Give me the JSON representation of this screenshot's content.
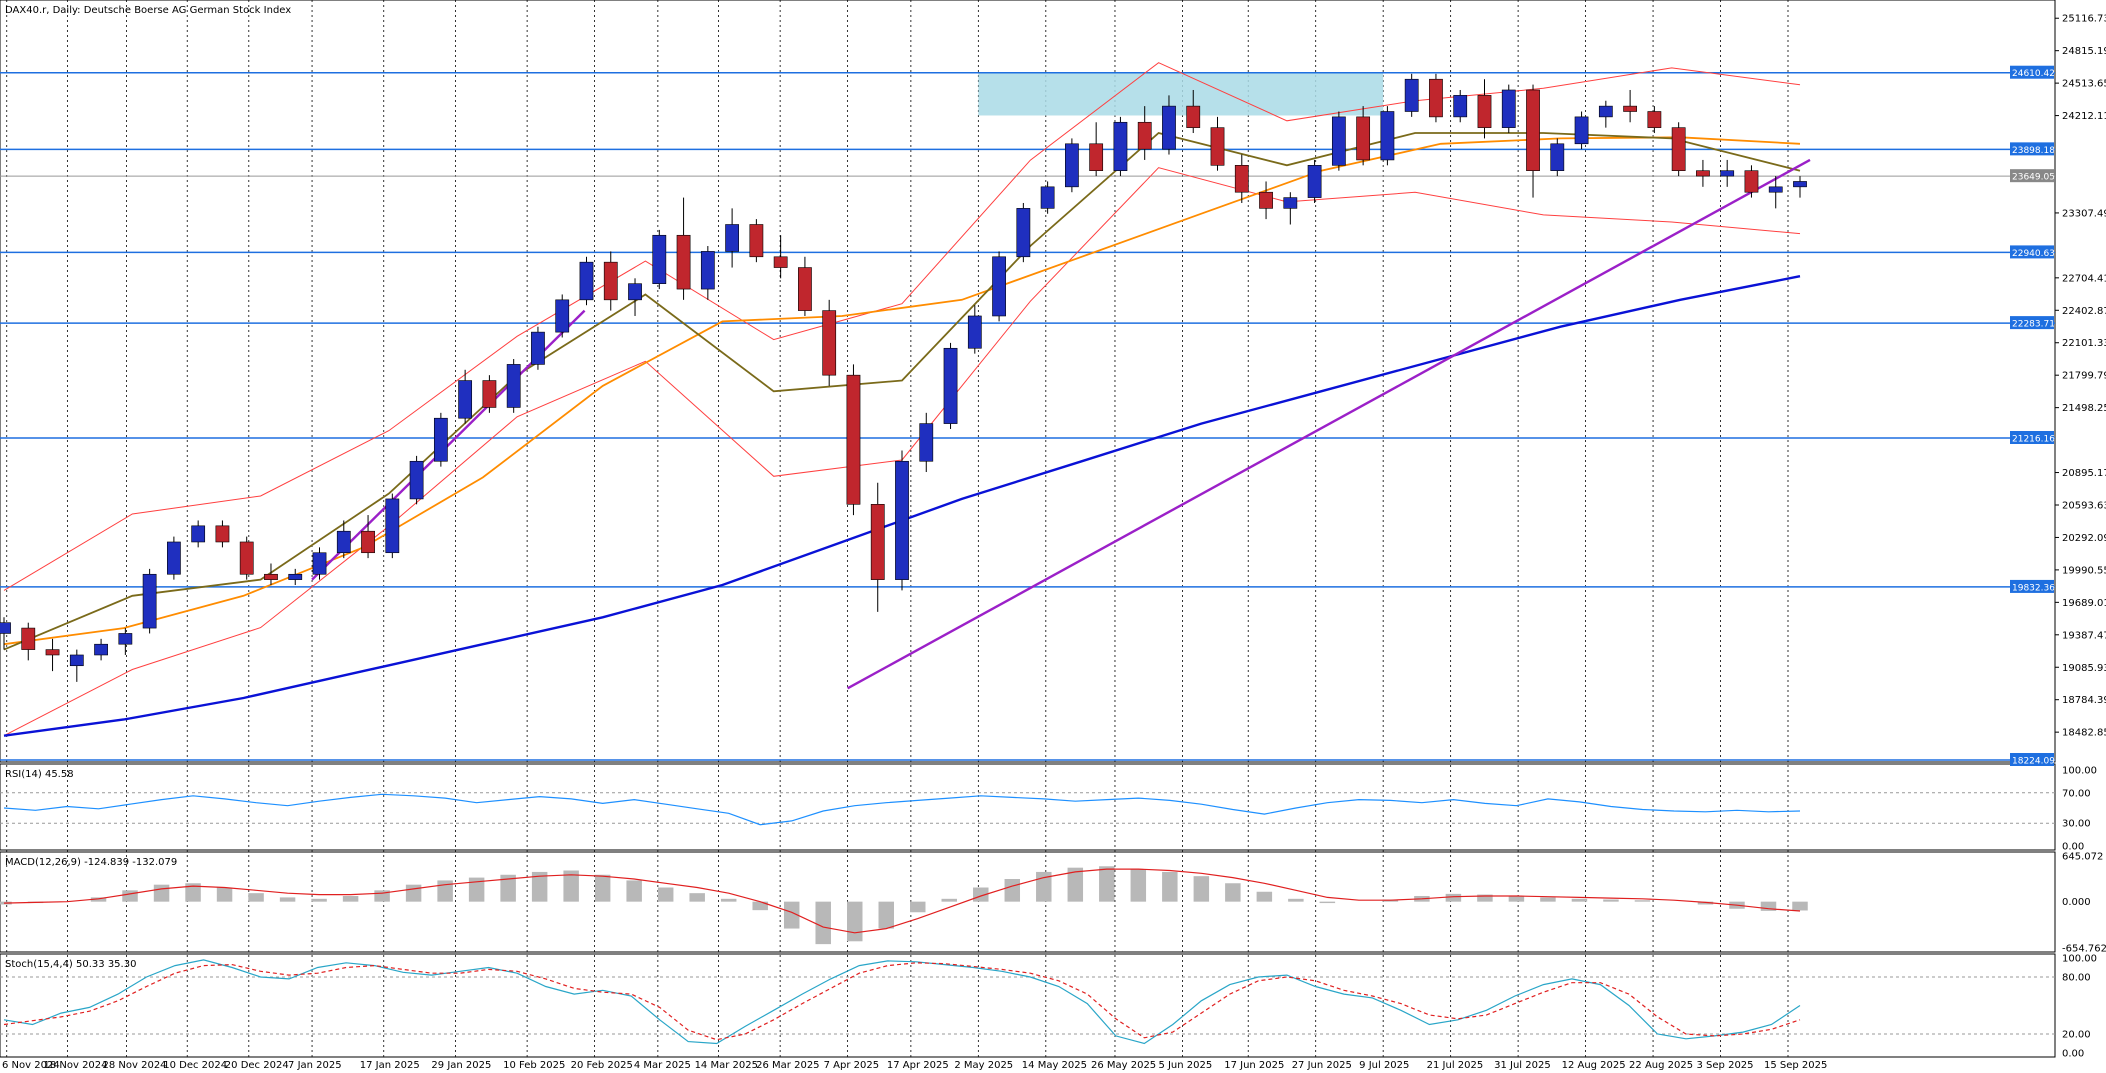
{
  "window": {
    "main_title": "DAX40.r, Daily:  Deutsche Boerse AG German Stock Index"
  },
  "colors": {
    "bull": "#1f2fbf",
    "bear": "#c0262d",
    "sma200": "#0a12d6",
    "ema50": "#ff8c00",
    "ema20": "#7a6a1a",
    "bollinger": "#ff4040",
    "level": "#1e6fe0",
    "trend": "#9b20c8",
    "zone": "#a9dbe6",
    "rsi": "#1e90ff",
    "macd_signal": "#e02020",
    "macd_hist": "#b8b8b8",
    "stoch_main": "#2aa6c8",
    "stoch_signal": "#e02020"
  },
  "chart_data": [
    {
      "type": "candlestick",
      "title": "DAX40.r, Daily:  Deutsche Boerse AG German Stock Index",
      "x_tick_labels": [
        "6 Nov 2024",
        "18 Nov 2024",
        "28 Nov 2024",
        "10 Dec 2024",
        "20 Dec 2024",
        "7 Jan 2025",
        "17 Jan 2025",
        "29 Jan 2025",
        "10 Feb 2025",
        "20 Feb 2025",
        "4 Mar 2025",
        "14 Mar 2025",
        "26 Mar 2025",
        "7 Apr 2025",
        "17 Apr 2025",
        "2 May 2025",
        "14 May 2025",
        "26 May 2025",
        "5 Jun 2025",
        "17 Jun 2025",
        "27 Jun 2025",
        "9 Jul 2025",
        "21 Jul 2025",
        "31 Jul 2025",
        "12 Aug 2025",
        "22 Aug 2025",
        "3 Sep 2025",
        "15 Sep 2025"
      ],
      "y_tick_labels": [
        "25116.73",
        "24815.19",
        "24513.65",
        "24212.11",
        "23307.49",
        "22704.41",
        "22402.87",
        "22101.33",
        "21799.79",
        "21498.25",
        "20895.17",
        "20593.63",
        "20292.09",
        "19990.55",
        "19689.01",
        "19387.47",
        "19085.93",
        "18784.39",
        "18482.85"
      ],
      "ylim": [
        18224.09,
        25267.5
      ],
      "grid": "vertical dotted at each date label",
      "horizontal_levels": [
        "24610.42",
        "23898.18",
        "22940.63",
        "22283.71",
        "21216.16",
        "19832.36",
        "18224.09"
      ],
      "current_price": "23649.05",
      "supply_zone": {
        "low": 24213,
        "high": 24610.42,
        "from": "2 May 2025",
        "to": "9 Jul 2025"
      },
      "trendlines": [
        {
          "name": "",
          "from": [
            "7 Jan 2025",
            19900
          ],
          "to": [
            "17 Feb 2025",
            22400
          ]
        },
        {
          "name": "",
          "from": [
            "7 Apr 2025",
            18890
          ],
          "to": [
            "26 Sep 2025",
            23800
          ]
        }
      ],
      "series": [
        {
          "name": "",
          "kind": "sma200",
          "values": [
            18450,
            18600,
            18800,
            19050,
            19300,
            19550,
            19850,
            20250,
            20650,
            21000,
            21350,
            21650,
            21950,
            22250,
            22500,
            22720
          ]
        },
        {
          "name": "",
          "kind": "ema50",
          "values": [
            19300,
            19450,
            19750,
            20200,
            20850,
            21700,
            22300,
            22350,
            22500,
            22900,
            23300,
            23700,
            23950,
            24000,
            24010,
            23950
          ]
        },
        {
          "name": "",
          "kind": "ema20",
          "values": [
            19250,
            19750,
            19900,
            20700,
            21800,
            22550,
            21650,
            21750,
            23000,
            24050,
            23750,
            24050,
            24050,
            24000,
            23700
          ]
        }
      ],
      "ohlc": [
        [
          19400,
          19550,
          19250,
          19500
        ],
        [
          19450,
          19500,
          19150,
          19250
        ],
        [
          19250,
          19350,
          19050,
          19200
        ],
        [
          19100,
          19250,
          18950,
          19200
        ],
        [
          19200,
          19350,
          19150,
          19300
        ],
        [
          19300,
          19450,
          19200,
          19400
        ],
        [
          19450,
          20000,
          19400,
          19950
        ],
        [
          19950,
          20300,
          19900,
          20250
        ],
        [
          20250,
          20450,
          20200,
          20400
        ],
        [
          20400,
          20450,
          20200,
          20250
        ],
        [
          20250,
          20300,
          19900,
          19950
        ],
        [
          19950,
          20050,
          19850,
          19900
        ],
        [
          19900,
          20000,
          19850,
          19950
        ],
        [
          19950,
          20200,
          19900,
          20150
        ],
        [
          20150,
          20450,
          20100,
          20350
        ],
        [
          20350,
          20500,
          20100,
          20150
        ],
        [
          20150,
          20700,
          20100,
          20650
        ],
        [
          20650,
          21050,
          20600,
          21000
        ],
        [
          21000,
          21450,
          20950,
          21400
        ],
        [
          21400,
          21850,
          21350,
          21750
        ],
        [
          21750,
          21800,
          21450,
          21500
        ],
        [
          21500,
          21950,
          21450,
          21900
        ],
        [
          21900,
          22250,
          21850,
          22200
        ],
        [
          22200,
          22550,
          22150,
          22500
        ],
        [
          22500,
          22900,
          22450,
          22850
        ],
        [
          22850,
          22950,
          22400,
          22500
        ],
        [
          22500,
          22700,
          22350,
          22650
        ],
        [
          22650,
          23150,
          22600,
          23100
        ],
        [
          23100,
          23450,
          22500,
          22600
        ],
        [
          22600,
          23000,
          22500,
          22950
        ],
        [
          22950,
          23350,
          22800,
          23200
        ],
        [
          23200,
          23250,
          22850,
          22900
        ],
        [
          22900,
          23100,
          22700,
          22800
        ],
        [
          22800,
          22900,
          22350,
          22400
        ],
        [
          22400,
          22500,
          21700,
          21800
        ],
        [
          21800,
          21900,
          20500,
          20600
        ],
        [
          20600,
          20800,
          19600,
          19900
        ],
        [
          19900,
          21100,
          19800,
          21000
        ],
        [
          21000,
          21450,
          20900,
          21350
        ],
        [
          21350,
          22100,
          21300,
          22050
        ],
        [
          22050,
          22450,
          22000,
          22350
        ],
        [
          22350,
          22950,
          22300,
          22900
        ],
        [
          22900,
          23400,
          22850,
          23350
        ],
        [
          23350,
          23600,
          23300,
          23550
        ],
        [
          23550,
          24000,
          23500,
          23950
        ],
        [
          23950,
          24150,
          23650,
          23700
        ],
        [
          23700,
          24200,
          23650,
          24150
        ],
        [
          24150,
          24300,
          23800,
          23900
        ],
        [
          23900,
          24400,
          23850,
          24300
        ],
        [
          24300,
          24450,
          24050,
          24100
        ],
        [
          24100,
          24200,
          23700,
          23750
        ],
        [
          23750,
          23850,
          23400,
          23500
        ],
        [
          23500,
          23600,
          23250,
          23350
        ],
        [
          23350,
          23500,
          23200,
          23450
        ],
        [
          23450,
          23800,
          23400,
          23750
        ],
        [
          23750,
          24250,
          23700,
          24200
        ],
        [
          24200,
          24300,
          23750,
          23800
        ],
        [
          23800,
          24300,
          23750,
          24250
        ],
        [
          24250,
          24600,
          24200,
          24550
        ],
        [
          24550,
          24600,
          24150,
          24200
        ],
        [
          24200,
          24450,
          24150,
          24400
        ],
        [
          24400,
          24550,
          24000,
          24100
        ],
        [
          24100,
          24500,
          24050,
          24450
        ],
        [
          24450,
          24500,
          23450,
          23700
        ],
        [
          23700,
          24000,
          23650,
          23950
        ],
        [
          23950,
          24250,
          23900,
          24200
        ],
        [
          24200,
          24350,
          24100,
          24300
        ],
        [
          24300,
          24450,
          24150,
          24250
        ],
        [
          24250,
          24300,
          24050,
          24100
        ],
        [
          24100,
          24150,
          23650,
          23700
        ],
        [
          23700,
          23800,
          23550,
          23650
        ],
        [
          23650,
          23800,
          23550,
          23700
        ],
        [
          23700,
          23750,
          23450,
          23500
        ],
        [
          23500,
          23650,
          23350,
          23550
        ],
        [
          23550,
          23650,
          23450,
          23600
        ]
      ]
    },
    {
      "type": "line",
      "title": "RSI(14) 45.58",
      "y_tick_labels": [
        "100.00",
        "70.00",
        "30.00",
        "0.00"
      ],
      "ylim": [
        0,
        100
      ],
      "series": [
        {
          "name": "",
          "values": [
            50,
            47,
            52,
            49,
            55,
            61,
            66,
            62,
            57,
            53,
            59,
            64,
            68,
            66,
            63,
            57,
            61,
            65,
            62,
            56,
            61,
            55,
            49,
            43,
            28,
            33,
            46,
            53,
            57,
            60,
            63,
            66,
            64,
            62,
            59,
            61,
            63,
            60,
            55,
            48,
            42,
            50,
            57,
            61,
            60,
            57,
            61,
            56,
            53,
            62,
            58,
            52,
            48,
            46,
            45,
            47,
            45,
            46
          ]
        }
      ]
    },
    {
      "type": "bar",
      "title": "MACD(12,26,9) -124.839 -132.079",
      "y_tick_labels": [
        "645.072",
        "0.000",
        "-654.762"
      ],
      "ylim": [
        -654.762,
        645.072
      ],
      "series": [
        {
          "name": "",
          "kind": "histogram",
          "values": [
            -40,
            -20,
            0,
            60,
            160,
            240,
            260,
            200,
            120,
            60,
            40,
            80,
            160,
            240,
            300,
            340,
            380,
            420,
            440,
            380,
            300,
            200,
            120,
            40,
            -120,
            -380,
            -600,
            -560,
            -380,
            -150,
            40,
            200,
            320,
            420,
            480,
            500,
            460,
            420,
            360,
            260,
            140,
            40,
            -20,
            0,
            30,
            80,
            110,
            100,
            80,
            60,
            40,
            30,
            20,
            0,
            -40,
            -100,
            -130,
            -125
          ]
        },
        {
          "name": "",
          "kind": "signal",
          "values": [
            -20,
            -10,
            0,
            40,
            110,
            180,
            220,
            200,
            160,
            120,
            100,
            100,
            120,
            180,
            240,
            280,
            320,
            360,
            380,
            360,
            320,
            260,
            200,
            120,
            0,
            -150,
            -360,
            -440,
            -380,
            -240,
            -80,
            80,
            220,
            340,
            420,
            460,
            460,
            440,
            400,
            340,
            260,
            160,
            60,
            20,
            20,
            40,
            70,
            80,
            80,
            70,
            60,
            50,
            40,
            20,
            -10,
            -50,
            -100,
            -132
          ]
        }
      ]
    },
    {
      "type": "line",
      "title": "Stoch(15,4,4) 50.33 35.30",
      "y_tick_labels": [
        "100.00",
        "80.00",
        "20.00",
        "0.00"
      ],
      "ylim": [
        0,
        100
      ],
      "series": [
        {
          "name": "",
          "kind": "main",
          "values": [
            35,
            30,
            42,
            48,
            62,
            80,
            92,
            98,
            90,
            80,
            78,
            90,
            95,
            92,
            85,
            82,
            86,
            90,
            84,
            70,
            62,
            66,
            60,
            35,
            12,
            10,
            28,
            45,
            62,
            78,
            92,
            97,
            96,
            93,
            90,
            86,
            80,
            70,
            52,
            18,
            10,
            30,
            55,
            72,
            80,
            82,
            70,
            62,
            58,
            45,
            30,
            35,
            45,
            60,
            72,
            78,
            72,
            50,
            20,
            15,
            18,
            22,
            30,
            50
          ]
        },
        {
          "name": "",
          "kind": "signal",
          "values": [
            30,
            34,
            38,
            44,
            55,
            70,
            84,
            92,
            93,
            86,
            82,
            84,
            90,
            92,
            88,
            84,
            84,
            88,
            86,
            78,
            68,
            64,
            62,
            48,
            24,
            14,
            20,
            35,
            52,
            68,
            84,
            92,
            95,
            94,
            91,
            88,
            84,
            76,
            62,
            36,
            16,
            22,
            42,
            62,
            76,
            80,
            76,
            66,
            60,
            52,
            40,
            36,
            40,
            52,
            64,
            74,
            74,
            62,
            38,
            20,
            18,
            20,
            25,
            35
          ]
        }
      ]
    }
  ]
}
